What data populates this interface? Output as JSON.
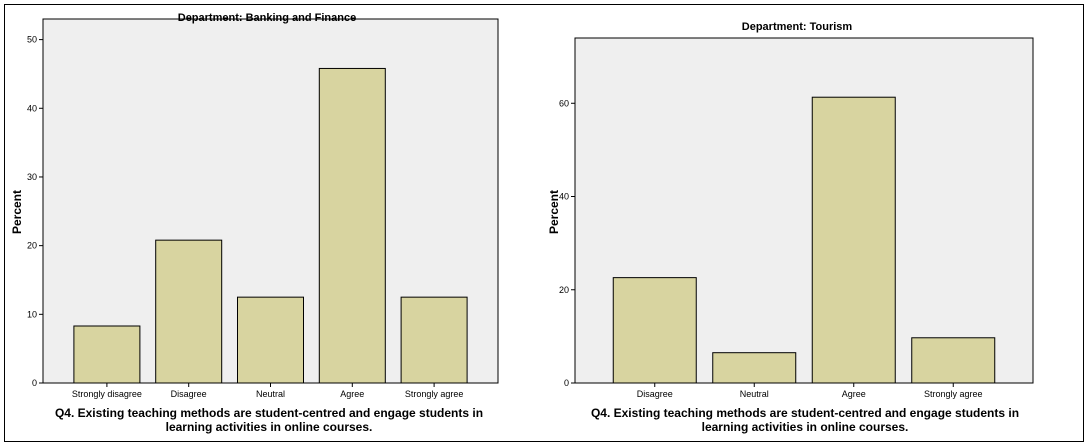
{
  "chart_data": [
    {
      "type": "bar",
      "title": "Department: Banking and Finance",
      "ylabel": "Percent",
      "xlabel_lines": [
        "Q4. Existing teaching methods are student-centred and engage students in",
        "learning activities in online courses."
      ],
      "categories": [
        "Strongly disagree",
        "Disagree",
        "Neutral",
        "Agree",
        "Strongly agree"
      ],
      "values": [
        8.3,
        20.8,
        12.5,
        45.8,
        12.5
      ],
      "ylim": [
        0,
        53
      ],
      "yticks": [
        0,
        10,
        20,
        30,
        40,
        50
      ],
      "grid": false,
      "colors": {
        "bar": "#d8d4a0",
        "plot_bg": "#efefef"
      }
    },
    {
      "type": "bar",
      "title": "Department: Tourism",
      "ylabel": "Percent",
      "xlabel_lines": [
        "Q4. Existing teaching methods are student-centred and engage students in",
        "learning activities in online courses."
      ],
      "categories": [
        "Disagree",
        "Neutral",
        "Agree",
        "Strongly agree"
      ],
      "values": [
        22.6,
        6.5,
        61.3,
        9.7
      ],
      "ylim": [
        0,
        74
      ],
      "yticks": [
        0,
        20,
        40,
        60
      ],
      "grid": false,
      "colors": {
        "bar": "#d8d4a0",
        "plot_bg": "#efefef"
      }
    }
  ]
}
